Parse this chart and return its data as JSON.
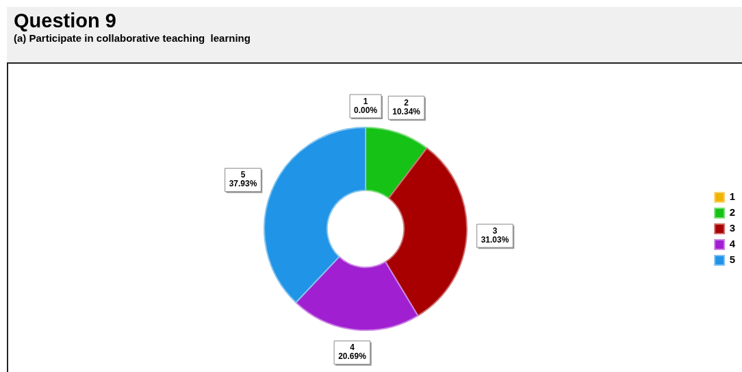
{
  "chart_data": {
    "type": "donut",
    "title": "Question 9",
    "subtitle": "(a) Participate in collaborative teaching  learning",
    "categories": [
      "1",
      "2",
      "3",
      "4",
      "5"
    ],
    "values": [
      0,
      10.34,
      31.03,
      20.69,
      37.93
    ],
    "value_labels": [
      "0.00%",
      "10.34%",
      "31.03%",
      "20.69%",
      "37.93%"
    ],
    "colors": [
      "#f2b400",
      "#16c216",
      "#a80000",
      "#a01fd0",
      "#2094e6"
    ],
    "legend": "right"
  }
}
